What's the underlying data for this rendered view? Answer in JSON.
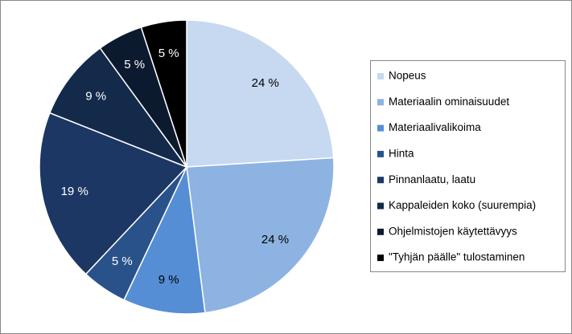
{
  "chart_data": {
    "type": "pie",
    "categories": [
      "Nopeus",
      "Materiaalin ominaisuudet",
      "Materiaalivalikoima",
      "Hinta",
      "Pinnanlaatu, laatu",
      "Kappaleiden koko (suurempia)",
      "Ohjelmistojen käytettävyys",
      "\"Tyhjän päälle\" tulostaminen"
    ],
    "values": [
      24,
      24,
      9,
      5,
      19,
      9,
      5,
      5
    ],
    "value_labels": [
      "24 %",
      "24 %",
      "9 %",
      "5 %",
      "19 %",
      "9 %",
      "5 %",
      "5 %"
    ],
    "colors": [
      "#c6d9f1",
      "#8db3e2",
      "#558ed5",
      "#2a528a",
      "#1c3764",
      "#132a4a",
      "#0c1a30",
      "#000000"
    ],
    "legend": "right"
  }
}
